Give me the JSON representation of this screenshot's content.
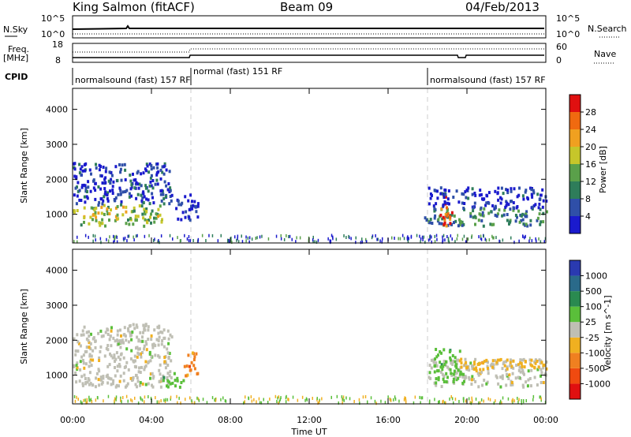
{
  "header": {
    "station": "King Salmon (fitACF)",
    "beam": "Beam 09",
    "date": "04/Feb/2013"
  },
  "strip_labels": {
    "nsky": "N.Sky",
    "nsky_ticks": [
      "10^5",
      "10^0"
    ],
    "nsearch": "N.Search",
    "freq": "Freq.",
    "freq_unit": "[MHz]",
    "freq_ticks": [
      "18",
      "8"
    ],
    "nave_ticks": [
      "60",
      "0"
    ],
    "nave": "Nave",
    "cpid": "CPID"
  },
  "cpid_segments": [
    {
      "label": "normalsound (fast) 157 RF",
      "start_h": 0,
      "end_h": 6
    },
    {
      "label": "normal (fast) 151 RF",
      "start_h": 6,
      "end_h": 18
    },
    {
      "label": "normalsound (fast) 157 RF",
      "start_h": 18,
      "end_h": 24
    }
  ],
  "axes": {
    "x_label": "Time UT",
    "x_ticks": [
      "00:00",
      "04:00",
      "08:00",
      "12:00",
      "16:00",
      "20:00",
      "00:00"
    ],
    "y_label": "Slant Range [km]",
    "y_ticks": [
      "1000",
      "2000",
      "3000",
      "4000"
    ],
    "x_range_h": [
      0,
      24
    ],
    "y_range_km": [
      180,
      4600
    ]
  },
  "power_colorbar": {
    "label": "Power [dB]",
    "ticks": [
      "4",
      "8",
      "12",
      "16",
      "20",
      "24",
      "28"
    ],
    "colors": [
      "#1a1acd",
      "#2f4fa8",
      "#2e7d5a",
      "#5aa04a",
      "#c6c62a",
      "#f0a020",
      "#f06a10",
      "#e01010"
    ]
  },
  "velocity_colorbar": {
    "label": "Velocity [m s^-1]",
    "ticks": [
      "1000",
      "500",
      "100",
      "25",
      "-25",
      "-100",
      "-500",
      "-1000"
    ],
    "colors": [
      "#2a3ab0",
      "#2a6a8a",
      "#2a8a50",
      "#5abf3a",
      "#bfbfb4",
      "#f0b020",
      "#f08020",
      "#f04a10",
      "#e01010"
    ]
  },
  "chart_data": {
    "type": "heatmap",
    "title": "King Salmon (fitACF)",
    "xlabel": "Time UT",
    "ylabel": "Slant Range [km]",
    "panels": [
      {
        "name": "Power [dB]",
        "regions": [
          {
            "t": [
              0.0,
              4.5
            ],
            "range_km": [
              700,
              1300
            ],
            "value": 18
          },
          {
            "t": [
              0.0,
              5.0
            ],
            "range_km": [
              1300,
              2500
            ],
            "value": 6
          },
          {
            "t": [
              5.2,
              6.4
            ],
            "range_km": [
              850,
              1600
            ],
            "value": 5
          },
          {
            "t": [
              17.8,
              24.0
            ],
            "range_km": [
              700,
              1200
            ],
            "value": 12
          },
          {
            "t": [
              18.6,
              19.2
            ],
            "range_km": [
              700,
              1600
            ],
            "value": 28
          },
          {
            "t": [
              18.0,
              24.0
            ],
            "range_km": [
              1200,
              1800
            ],
            "value": 5
          }
        ]
      },
      {
        "name": "Velocity [m s^-1]",
        "regions": [
          {
            "t": [
              0.0,
              5.0
            ],
            "range_km": [
              700,
              2500
            ],
            "value": 0
          },
          {
            "t": [
              5.6,
              6.3
            ],
            "range_km": [
              950,
              1700
            ],
            "value": -300
          },
          {
            "t": [
              4.5,
              5.6
            ],
            "range_km": [
              700,
              1100
            ],
            "value": 100
          },
          {
            "t": [
              18.0,
              24.0
            ],
            "range_km": [
              700,
              1500
            ],
            "value": 0
          },
          {
            "t": [
              18.3,
              19.8
            ],
            "range_km": [
              800,
              1800
            ],
            "value": 100
          },
          {
            "t": [
              19.5,
              24.0
            ],
            "range_km": [
              1200,
              1500
            ],
            "value": -100
          }
        ]
      }
    ]
  }
}
